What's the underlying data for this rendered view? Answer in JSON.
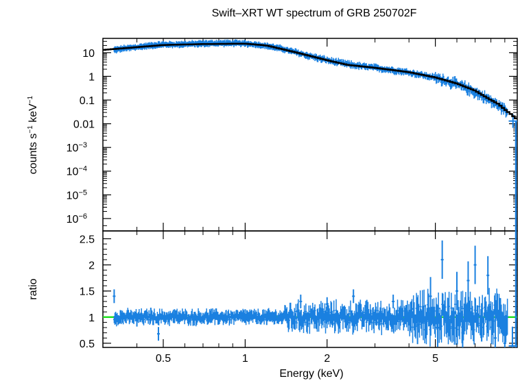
{
  "chart_data": [
    {
      "type": "scatter",
      "panel": "spectrum",
      "title": "Swift–XRT WT spectrum of GRB 250702F",
      "xlabel": "",
      "ylabel_base": "counts s",
      "ylabel_exp1": "−1",
      "ylabel_mid": " keV",
      "ylabel_exp2": "−1",
      "xscale": "log",
      "yscale": "log",
      "xlim": [
        0.3,
        10
      ],
      "ylim": [
        3e-07,
        40
      ],
      "yticks": [
        {
          "v": 10,
          "label": "10",
          "exp": ""
        },
        {
          "v": 1,
          "label": "1",
          "exp": ""
        },
        {
          "v": 0.1,
          "label": "0.1",
          "exp": ""
        },
        {
          "v": 0.01,
          "label": "0.01",
          "exp": ""
        },
        {
          "v": 0.001,
          "label": "10",
          "exp": "−3"
        },
        {
          "v": 0.0001,
          "label": "10",
          "exp": "−4"
        },
        {
          "v": 1e-05,
          "label": "10",
          "exp": "−5"
        },
        {
          "v": 1e-06,
          "label": "10",
          "exp": "−6"
        }
      ],
      "data_color": "#1a80e0",
      "model_color": "#000000",
      "data": {
        "x": [
          0.33,
          0.36,
          0.4,
          0.45,
          0.5,
          0.55,
          0.62,
          0.7,
          0.8,
          0.9,
          1.0,
          1.1,
          1.2,
          1.35,
          1.5,
          1.7,
          1.9,
          2.1,
          2.4,
          2.7,
          3.0,
          3.4,
          3.8,
          4.3,
          4.8,
          5.4,
          6.0,
          6.6,
          7.2,
          7.8,
          8.3,
          9.0,
          9.7
        ],
        "y": [
          13,
          15,
          17,
          20,
          22,
          22,
          23,
          24,
          25,
          25,
          24,
          22,
          19,
          15,
          11,
          7.5,
          5.5,
          4.2,
          3.2,
          2.6,
          2.3,
          1.9,
          1.6,
          1.25,
          0.95,
          0.7,
          0.45,
          0.3,
          0.18,
          0.11,
          0.07,
          0.04,
          0.013
        ]
      },
      "model": {
        "x": [
          0.3,
          0.4,
          0.5,
          0.7,
          1.0,
          1.2,
          1.5,
          1.8,
          2.1,
          2.4,
          3.0,
          4.0,
          5.0,
          6.0,
          7.0,
          8.0,
          8.5,
          9.0,
          9.5,
          10.0
        ],
        "y": [
          13,
          17,
          21,
          23,
          24,
          20,
          11,
          6.5,
          4.2,
          3.0,
          2.3,
          1.5,
          0.9,
          0.5,
          0.25,
          0.1,
          0.07,
          0.04,
          0.025,
          0.015
        ]
      }
    },
    {
      "type": "scatter",
      "panel": "ratio",
      "xlabel": "Energy (keV)",
      "ylabel": "ratio",
      "xscale": "log",
      "yscale": "linear",
      "xlim": [
        0.3,
        10
      ],
      "ylim": [
        0.42,
        2.65
      ],
      "xticks": [
        {
          "v": 0.5,
          "label": "0.5"
        },
        {
          "v": 1,
          "label": "1"
        },
        {
          "v": 2,
          "label": "2"
        },
        {
          "v": 5,
          "label": "5"
        }
      ],
      "yticks": [
        {
          "v": 0.5,
          "label": "0.5"
        },
        {
          "v": 1,
          "label": "1"
        },
        {
          "v": 1.5,
          "label": "1.5"
        },
        {
          "v": 2,
          "label": "2"
        },
        {
          "v": 2.5,
          "label": "2.5"
        }
      ],
      "reference_line": 1,
      "reference_color": "#22e022",
      "data_color": "#1a80e0",
      "data": {
        "x": [
          0.33,
          0.35,
          0.4,
          0.45,
          0.48,
          0.55,
          0.65,
          0.75,
          0.85,
          1.0,
          1.2,
          1.4,
          1.6,
          1.8,
          2.0,
          2.2,
          2.5,
          2.8,
          3.1,
          3.5,
          3.9,
          4.3,
          4.8,
          5.1,
          5.3,
          5.6,
          6.0,
          6.3,
          6.6,
          7.0,
          7.4,
          7.8,
          8.3,
          9.0,
          9.6
        ],
        "y": [
          1.4,
          1.0,
          0.95,
          1.05,
          0.68,
          1.02,
          0.97,
          1.03,
          1.0,
          1.02,
          0.98,
          1.1,
          1.3,
          1.0,
          1.25,
          0.95,
          1.4,
          1.2,
          0.9,
          1.3,
          1.1,
          0.85,
          1.4,
          0.8,
          2.1,
          1.0,
          1.5,
          0.7,
          1.7,
          2.0,
          0.9,
          1.8,
          0.6,
          0.5,
          0.45
        ]
      }
    }
  ]
}
